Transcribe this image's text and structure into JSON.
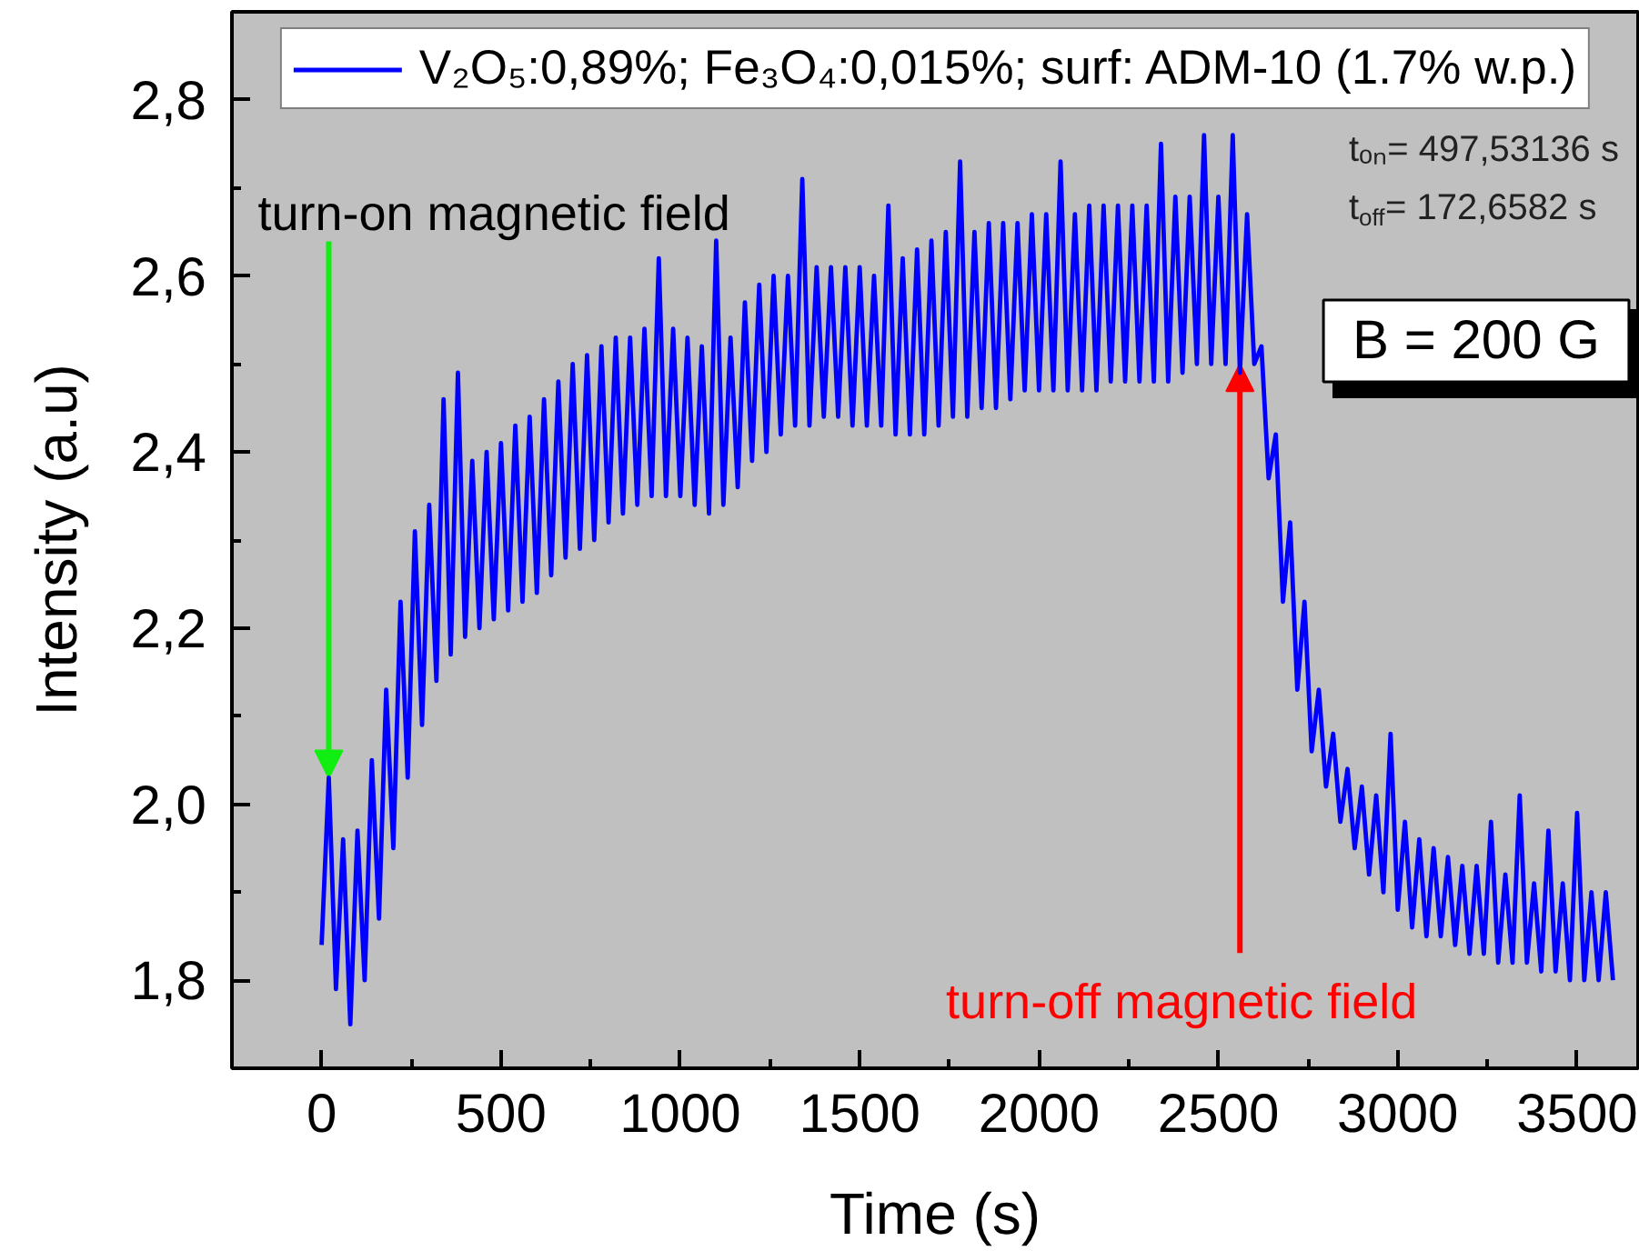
{
  "chart_data": {
    "type": "line",
    "xlabel": "Time (s)",
    "ylabel": "Intensity (a.u)",
    "xlim": [
      -250,
      3670
    ],
    "ylim": [
      1.7,
      2.9
    ],
    "xticks": [
      0,
      {
        "value": 250,
        "label": null
      },
      500,
      {
        "value": 750,
        "label": null
      },
      1000,
      {
        "value": 1250,
        "label": null
      },
      1500,
      {
        "value": 1750,
        "label": null
      },
      2000,
      {
        "value": 2250,
        "label": null
      },
      2500,
      {
        "value": 2750,
        "label": null
      },
      3000,
      {
        "value": 3250,
        "label": null
      },
      3500
    ],
    "yticks": [
      {
        "value": 1.8,
        "label": "1,8"
      },
      {
        "value": 1.9,
        "label": null
      },
      {
        "value": 2.0,
        "label": "2,0"
      },
      {
        "value": 2.1,
        "label": null
      },
      {
        "value": 2.2,
        "label": "2,2"
      },
      {
        "value": 2.3,
        "label": null
      },
      {
        "value": 2.4,
        "label": "2,4"
      },
      {
        "value": 2.5,
        "label": null
      },
      {
        "value": 2.6,
        "label": "2,6"
      },
      {
        "value": 2.7,
        "label": null
      },
      {
        "value": 2.8,
        "label": "2,8"
      }
    ],
    "legend": "top",
    "x": [
      0,
      20,
      40,
      60,
      80,
      100,
      120,
      140,
      160,
      180,
      200,
      220,
      240,
      260,
      280,
      300,
      320,
      340,
      360,
      380,
      400,
      420,
      440,
      460,
      480,
      500,
      520,
      540,
      560,
      580,
      600,
      620,
      640,
      660,
      680,
      700,
      720,
      740,
      760,
      780,
      800,
      820,
      840,
      860,
      880,
      900,
      920,
      940,
      960,
      980,
      1000,
      1020,
      1040,
      1060,
      1080,
      1100,
      1120,
      1140,
      1160,
      1180,
      1200,
      1220,
      1240,
      1260,
      1280,
      1300,
      1320,
      1340,
      1360,
      1380,
      1400,
      1420,
      1440,
      1460,
      1480,
      1500,
      1520,
      1540,
      1560,
      1580,
      1600,
      1620,
      1640,
      1660,
      1680,
      1700,
      1720,
      1740,
      1760,
      1780,
      1800,
      1820,
      1840,
      1860,
      1880,
      1900,
      1920,
      1940,
      1960,
      1980,
      2000,
      2020,
      2040,
      2060,
      2080,
      2100,
      2120,
      2140,
      2160,
      2180,
      2200,
      2220,
      2240,
      2260,
      2280,
      2300,
      2320,
      2340,
      2360,
      2380,
      2400,
      2420,
      2440,
      2460,
      2480,
      2500,
      2520,
      2540,
      2560,
      2580,
      2600,
      2620,
      2640,
      2660,
      2680,
      2700,
      2720,
      2740,
      2760,
      2780,
      2800,
      2820,
      2840,
      2860,
      2880,
      2900,
      2920,
      2940,
      2960,
      2980,
      3000,
      3020,
      3040,
      3060,
      3080,
      3100,
      3120,
      3140,
      3160,
      3180,
      3200,
      3220,
      3240,
      3260,
      3280,
      3300,
      3320,
      3340,
      3360,
      3380,
      3400,
      3420,
      3440,
      3460,
      3480,
      3500,
      3520,
      3540,
      3560,
      3580,
      3600
    ],
    "series": [
      {
        "name": "V₂O₅:0,89%; Fe₃O₄:0,015%; surf: ADM-10 (1.7% w.p.)",
        "color": "#0000ff",
        "values": [
          1.84,
          2.03,
          1.79,
          1.96,
          1.75,
          1.97,
          1.8,
          2.05,
          1.87,
          2.13,
          1.95,
          2.23,
          2.03,
          2.31,
          2.09,
          2.34,
          2.14,
          2.46,
          2.17,
          2.49,
          2.19,
          2.39,
          2.2,
          2.4,
          2.21,
          2.41,
          2.22,
          2.43,
          2.23,
          2.44,
          2.24,
          2.46,
          2.26,
          2.48,
          2.28,
          2.5,
          2.29,
          2.51,
          2.3,
          2.52,
          2.32,
          2.53,
          2.33,
          2.53,
          2.34,
          2.54,
          2.35,
          2.62,
          2.35,
          2.54,
          2.35,
          2.53,
          2.34,
          2.52,
          2.33,
          2.64,
          2.34,
          2.53,
          2.36,
          2.57,
          2.39,
          2.59,
          2.4,
          2.6,
          2.42,
          2.6,
          2.43,
          2.71,
          2.43,
          2.61,
          2.44,
          2.61,
          2.44,
          2.61,
          2.43,
          2.61,
          2.43,
          2.6,
          2.43,
          2.68,
          2.42,
          2.62,
          2.42,
          2.63,
          2.42,
          2.64,
          2.43,
          2.65,
          2.44,
          2.73,
          2.44,
          2.65,
          2.45,
          2.66,
          2.45,
          2.66,
          2.46,
          2.66,
          2.47,
          2.67,
          2.47,
          2.67,
          2.47,
          2.73,
          2.47,
          2.67,
          2.47,
          2.68,
          2.47,
          2.68,
          2.48,
          2.68,
          2.48,
          2.68,
          2.48,
          2.68,
          2.48,
          2.75,
          2.48,
          2.69,
          2.49,
          2.69,
          2.5,
          2.76,
          2.5,
          2.69,
          2.5,
          2.76,
          2.49,
          2.67,
          2.5,
          2.52,
          2.37,
          2.42,
          2.23,
          2.32,
          2.13,
          2.23,
          2.06,
          2.13,
          2.02,
          2.08,
          1.98,
          2.04,
          1.95,
          2.02,
          1.92,
          2.01,
          1.9,
          2.08,
          1.88,
          1.98,
          1.86,
          1.96,
          1.85,
          1.95,
          1.85,
          1.94,
          1.84,
          1.93,
          1.83,
          1.93,
          1.83,
          1.98,
          1.82,
          1.92,
          1.82,
          2.01,
          1.82,
          1.91,
          1.81,
          1.97,
          1.81,
          1.91,
          1.8,
          1.99,
          1.8,
          1.9,
          1.8,
          1.9,
          1.8
        ]
      }
    ],
    "annotations": [
      {
        "text": "turn-on magnetic field",
        "x": 20,
        "y": 2.03
      },
      "tₒₙ= 497,53136 s",
      "t$_{off}$= 172,6582 s",
      "B = 200 G",
      {
        "text": "turn-off magnetic field",
        "x": 2560,
        "y": 2.5
      }
    ]
  }
}
